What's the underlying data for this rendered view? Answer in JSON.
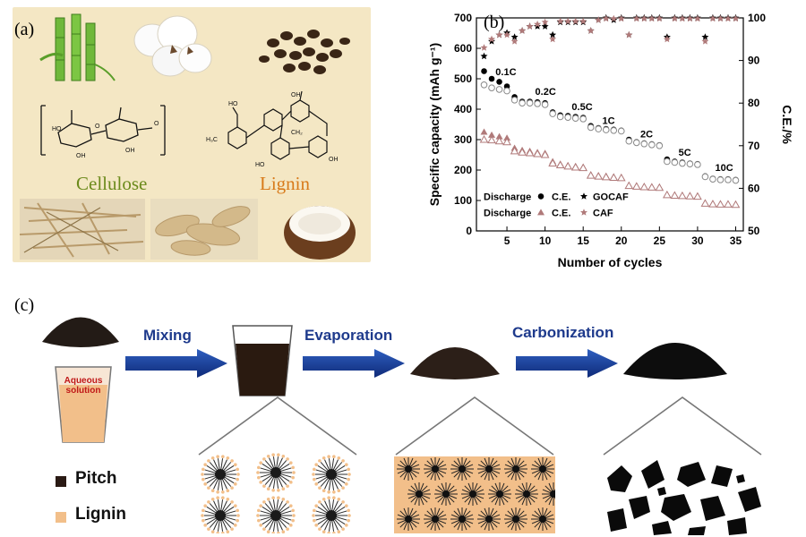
{
  "panel_a": {
    "label": "(a)",
    "cellulose_label": "Cellulose",
    "lignin_label": "Lignin",
    "images": [
      "bamboo-icon",
      "cotton-icon",
      "coffee-beans-icon",
      "cellulose-structure-icon",
      "lignin-structure-icon",
      "wood-fiber-icon",
      "corn-husk-icon",
      "coconut-icon"
    ]
  },
  "panel_b": {
    "label": "(b)"
  },
  "chart_data": {
    "type": "scatter",
    "xlabel": "Number of cycles",
    "ylabel": "Specific capacity (mAh g⁻¹)",
    "y2label": "C.E./%",
    "xlim": [
      1,
      36
    ],
    "ylim": [
      0,
      700
    ],
    "y2lim": [
      50,
      100
    ],
    "xticks": [
      5,
      10,
      15,
      20,
      25,
      30,
      35
    ],
    "yticks": [
      0,
      100,
      200,
      300,
      400,
      500,
      600,
      700
    ],
    "y2ticks": [
      50,
      60,
      70,
      80,
      90,
      100
    ],
    "rate_labels": [
      {
        "text": "0.1C",
        "x": 3.5,
        "y": 512
      },
      {
        "text": "0.2C",
        "x": 8.7,
        "y": 447
      },
      {
        "text": "0.5C",
        "x": 13.5,
        "y": 397
      },
      {
        "text": "1C",
        "x": 17.5,
        "y": 352
      },
      {
        "text": "2C",
        "x": 22.5,
        "y": 307
      },
      {
        "text": "5C",
        "x": 27.5,
        "y": 247
      },
      {
        "text": "10C",
        "x": 32.3,
        "y": 197
      }
    ],
    "legend": {
      "row1": [
        "Discharge",
        "C.E.",
        "GOCAF"
      ],
      "row2": [
        "Discharge",
        "C.E.",
        "CAF"
      ]
    },
    "colors": {
      "gocaf": "#000000",
      "caf": "#b07a7a"
    },
    "series": [
      {
        "name": "GOCAF",
        "marker": "filled-circle",
        "axis": "left",
        "x": [
          2,
          3,
          4,
          5,
          6,
          7,
          8,
          9,
          10,
          11,
          12,
          13,
          14,
          15,
          16,
          17,
          18,
          19,
          20,
          21,
          22,
          23,
          24,
          25,
          26,
          27,
          28,
          29,
          30,
          31,
          32,
          33,
          34,
          35
        ],
        "values": [
          525,
          500,
          490,
          475,
          440,
          425,
          425,
          423,
          420,
          390,
          380,
          378,
          375,
          372,
          345,
          338,
          335,
          333,
          330,
          300,
          292,
          288,
          285,
          282,
          235,
          228,
          225,
          222,
          220,
          180,
          172,
          170,
          170,
          168
        ]
      },
      {
        "name": "GOCAF",
        "marker": "open-circle",
        "axis": "left",
        "x": [
          2,
          3,
          4,
          5,
          6,
          7,
          8,
          9,
          10,
          11,
          12,
          13,
          14,
          15,
          16,
          17,
          18,
          19,
          20,
          21,
          22,
          23,
          24,
          25,
          26,
          27,
          28,
          29,
          30,
          31,
          32,
          33,
          34,
          35
        ],
        "values": [
          480,
          470,
          465,
          460,
          430,
          420,
          420,
          418,
          415,
          385,
          375,
          373,
          370,
          368,
          340,
          335,
          332,
          330,
          328,
          295,
          290,
          286,
          283,
          280,
          228,
          225,
          222,
          220,
          218,
          178,
          170,
          168,
          168,
          166
        ]
      },
      {
        "name": "CAF",
        "marker": "filled-triangle",
        "axis": "left",
        "x": [
          2,
          3,
          4,
          5,
          6,
          7,
          8,
          9,
          10,
          11,
          12,
          13,
          14,
          15,
          16,
          17,
          18,
          19,
          20,
          21,
          22,
          23,
          24,
          25,
          26,
          27,
          28,
          29,
          30,
          31,
          32,
          33,
          34,
          35
        ],
        "values": [
          325,
          315,
          310,
          305,
          272,
          265,
          262,
          258,
          255,
          228,
          220,
          215,
          212,
          210,
          185,
          182,
          180,
          178,
          176,
          150,
          148,
          146,
          145,
          144,
          120,
          118,
          117,
          116,
          115,
          92,
          90,
          89,
          88,
          88
        ]
      },
      {
        "name": "CAF",
        "marker": "open-triangle",
        "axis": "left",
        "x": [
          2,
          3,
          4,
          5,
          6,
          7,
          8,
          9,
          10,
          11,
          12,
          13,
          14,
          15,
          16,
          17,
          18,
          19,
          20,
          21,
          22,
          23,
          24,
          25,
          26,
          27,
          28,
          29,
          30,
          31,
          32,
          33,
          34,
          35
        ],
        "values": [
          300,
          298,
          295,
          292,
          262,
          258,
          256,
          253,
          250,
          222,
          216,
          212,
          209,
          207,
          182,
          179,
          177,
          175,
          174,
          148,
          146,
          144,
          143,
          142,
          118,
          116,
          115,
          114,
          113,
          90,
          88,
          87,
          87,
          86
        ]
      },
      {
        "name": "GOCAF",
        "marker": "filled-star",
        "axis": "right",
        "x": [
          2,
          3,
          4,
          5,
          6,
          7,
          8,
          9,
          10,
          11,
          12,
          13,
          14,
          15,
          16,
          17,
          18,
          19,
          20,
          21,
          22,
          23,
          24,
          25,
          26,
          27,
          28,
          29,
          30,
          31,
          32,
          33,
          34,
          35
        ],
        "values": [
          91,
          94.5,
          96,
          96.5,
          95.5,
          97,
          98,
          98,
          98,
          96,
          99,
          99,
          99,
          99,
          97,
          99.5,
          100,
          99.5,
          100,
          96,
          100,
          100,
          100,
          100,
          95.5,
          100,
          100,
          100,
          100,
          95.5,
          100,
          100,
          100,
          100
        ]
      },
      {
        "name": "CAF",
        "marker": "hollow-star",
        "axis": "right",
        "x": [
          2,
          3,
          4,
          5,
          6,
          7,
          8,
          9,
          10,
          11,
          12,
          13,
          14,
          15,
          16,
          17,
          18,
          19,
          20,
          21,
          22,
          23,
          24,
          25,
          26,
          27,
          28,
          29,
          30,
          31,
          32,
          33,
          34,
          35
        ],
        "values": [
          93,
          95,
          96,
          96,
          94.5,
          97,
          98,
          98.5,
          99,
          95,
          99.2,
          99.2,
          99.2,
          99.2,
          97,
          99.5,
          99.8,
          99.8,
          99.8,
          96,
          99.8,
          99.8,
          99.8,
          99.8,
          95,
          99.8,
          99.8,
          99.8,
          99.8,
          94.5,
          99.8,
          99.8,
          99.8,
          99.8
        ]
      }
    ]
  },
  "panel_c": {
    "label": "(c)",
    "aqueous_label_1": "Aqueous",
    "aqueous_label_2": "solution",
    "steps": [
      "Mixing",
      "Evaporation",
      "Carbonization"
    ],
    "legend": [
      {
        "label": "Pitch",
        "color": "#2a1a14"
      },
      {
        "label": "Lignin",
        "color": "#f2bf8a"
      }
    ]
  }
}
